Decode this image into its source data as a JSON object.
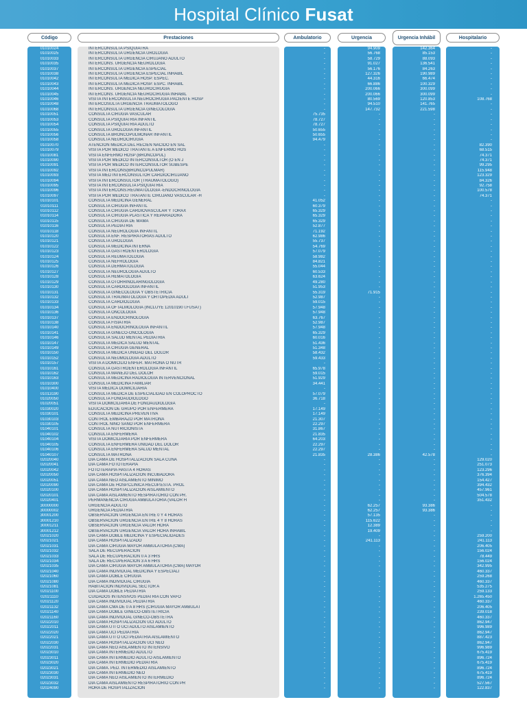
{
  "title": {
    "prefix": "Hospital Clínico",
    "brand": "Fusat"
  },
  "headers": [
    "Código",
    "Prestaciones",
    "Ambulatorio",
    "Urgencia",
    "Urgencia Inhábil",
    "Hospitalario"
  ],
  "rows": [
    [
      "01010024",
      "INTERCONSULTA PSIQUIATRA",
      "-",
      "94.909",
      "142.364",
      "-"
    ],
    [
      "01010025",
      "INTERCONSULTA URGENCIA UROLOGIA",
      "-",
      "56.768",
      "85.153",
      "-"
    ],
    [
      "01010033",
      "INTERCONSULTA URGENCIA CIRUJANO ADULTO",
      "-",
      "58.729",
      "88.093",
      "-"
    ],
    [
      "01010035",
      "INTERCONS. URGENCIA NEUROLOGIA",
      "-",
      "91.027",
      "136.541",
      "-"
    ],
    [
      "01010037",
      "INTERCONSULTA URGENCIA ESPECIAL",
      "-",
      "56.176",
      "84.263",
      "-"
    ],
    [
      "01010038",
      "INTERCONSULTA URGENCIA ESPECIAL INHABIL",
      "-",
      "127.326",
      "190.989",
      "-"
    ],
    [
      "01010042",
      "INTERCONSULTA MEDICA HOSP. ESPEC.",
      "-",
      "44.316",
      "66.474",
      "-"
    ],
    [
      "01010043",
      "INTERCONSULTA MEDICA HOSP. ESPC. INHABIL",
      "-",
      "66.886",
      "100.329",
      "-"
    ],
    [
      "01010044",
      "INTERCONS. URGENCIA NEUROCIRUGIA",
      "-",
      "200.066",
      "300.099",
      "-"
    ],
    [
      "01010045",
      "INTERCONS. URGENCIA NEUROCIRUGIA INHABIL",
      "-",
      "200.066",
      "300.099",
      "-"
    ],
    [
      "01010046",
      "VISITA INTERCONSULTA NEUROCIRUGIA PACIENTE HOSP",
      "-",
      "80.569",
      "120.853",
      "108.768"
    ],
    [
      "01010048",
      "INTERCOSULTA URGENCIA TRAUMATOLOGO",
      "-",
      "94.510",
      "141.765",
      "-"
    ],
    [
      "01010068",
      "INTERCONSULTA URGENCIA GINECOLOGÍA",
      "-",
      "147.732",
      "221.598",
      "-"
    ],
    [
      "01010051",
      "CONSULTA CIRUGIA VASCULAR",
      "75.735",
      "-",
      "-",
      "-"
    ],
    [
      "01010053",
      "CONSULTA PSIQUIATRIA INFANTIL",
      "78.727",
      "-",
      "-",
      "-"
    ],
    [
      "01010054",
      "CONSULTA PSIQUIATRIA ADULTO",
      "78.727",
      "-",
      "-",
      "-"
    ],
    [
      "01010055",
      "CONSULTA UROLOGIA INFANTIL",
      "50.655",
      "-",
      "-",
      "-"
    ],
    [
      "01010056",
      "CONSULTA BRONCOPULMONAR INFANTIL",
      "50.655",
      "-",
      "-",
      "-"
    ],
    [
      "01010058",
      "CONSULTA NEUROCIRUGIA",
      "94.479",
      "-",
      "-",
      "-"
    ],
    [
      "01010070",
      "ATENCION MEDICA DEL RECIEN NACIDO EN SAL",
      "-",
      "-",
      "-",
      "82.390"
    ],
    [
      "01010079",
      "VISITA POR MEDICO TRATANTE A ENFERMO HOS",
      "-",
      "-",
      "-",
      "68.515"
    ],
    [
      "01010081",
      "VISITA ENFERMO HOSP (BRONCOPUL)",
      "-",
      "-",
      "-",
      "74.371"
    ],
    [
      "01010090",
      "VISITA POR MEDICO INTERCONSULTOR (O EN J",
      "-",
      "-",
      "-",
      "74.371"
    ],
    [
      "01010091",
      "VISITA POR MEDICO INTERCONSULTOR SUBESPE",
      "-",
      "-",
      "-",
      "99.295"
    ],
    [
      "01010092",
      "VISITA INTERCONS(BRONCOPULMAR)",
      "-",
      "-",
      "-",
      "115.948"
    ],
    [
      "01010093",
      "VISITA MED INTERCONSULTOR CARDIOCIRUJANO",
      "-",
      "-",
      "-",
      "123.329"
    ],
    [
      "01010094",
      "VISITA INTERCONSULTOR (TRAUMATOLOGO)",
      "-",
      "-",
      "-",
      "84.326"
    ],
    [
      "01010095",
      "VISITA INTERCONSULTA PSIQUIATRIA",
      "-",
      "-",
      "-",
      "92.758"
    ],
    [
      "01010096",
      "VISITA INTERCONS.REUMATOLOGIA -ENDOCRINOLOGIA",
      "-",
      "-",
      "-",
      "100.578"
    ],
    [
      "01010097",
      "VISITA POR MEDICO TRATANTE CIRUJANO VASCULAR -H",
      "-",
      "-",
      "-",
      "74.371"
    ],
    [
      "01010101",
      "CONSULTA MEDICINA GENERAL",
      "41.052",
      "-",
      "-",
      "-"
    ],
    [
      "01010111",
      "CONSULTA CIRUGIA INFANTIL",
      "60.379",
      "-",
      "-",
      "-"
    ],
    [
      "01010112",
      "CONSULTA CIRUGIA CARDIOVASCULAR Y TORAX",
      "65.329",
      "-",
      "-",
      "-"
    ],
    [
      "01010114",
      "CONSULTA CIRUGIA PLASTICA Y REPARADORA",
      "65.329",
      "-",
      "-",
      "-"
    ],
    [
      "01010115",
      "CONSULTA CIRUGIA DE MAMA",
      "65.329",
      "-",
      "-",
      "-"
    ],
    [
      "01010116",
      "CONSULTA PEDIATRIA",
      "52.877",
      "-",
      "-",
      "-"
    ],
    [
      "01010118",
      "CONSULTA NEUROLOGIA INFANTIL",
      "71.192",
      "-",
      "-",
      "-"
    ],
    [
      "01010120",
      "CONSULTA ENF. RESPIRATORIAS ADULTO",
      "62.986",
      "-",
      "-",
      "-"
    ],
    [
      "01010121",
      "CONSULTA UROLOGIA",
      "55.737",
      "-",
      "-",
      "-"
    ],
    [
      "01010122",
      "CONSULTA MEDICINA INTERNA",
      "54.769",
      "-",
      "-",
      "-"
    ],
    [
      "01010123",
      "CONSULTA GASTROENTEROLOGIA",
      "57.079",
      "-",
      "-",
      "-"
    ],
    [
      "01010124",
      "CONSULTA REUMATOLOGIA",
      "58.982",
      "-",
      "-",
      "-"
    ],
    [
      "01010125",
      "CONSULTA NEFROLOGIA",
      "84.821",
      "-",
      "-",
      "-"
    ],
    [
      "01010126",
      "CONSULTA DERMATOLOGIA",
      "55.044",
      "-",
      "-",
      "-"
    ],
    [
      "01010127",
      "CONSULTA NEUROLOGIA ADULTO",
      "60.533",
      "-",
      "-",
      "-"
    ],
    [
      "01010128",
      "CONSULTA HEMATOLOGIA",
      "63.624",
      "-",
      "-",
      "-"
    ],
    [
      "01010129",
      "CONSULTA OTORRINOLARINGOLOGIA",
      "49.280",
      "-",
      "-",
      "-"
    ],
    [
      "01010130",
      "CONSULTA CARDIOLOGIA INFANTIL",
      "51.953",
      "-",
      "-",
      "-"
    ],
    [
      "01010131",
      "CONSULTA GINECOLOGIA Y OBSTETRICIA",
      "55.319",
      "71.915",
      "-",
      "-"
    ],
    [
      "01010132",
      "CONSULTA TRAUMATOLOGIA Y ORTOPEDIA ADULT",
      "52.987",
      "-",
      "-",
      "-"
    ],
    [
      "01010133",
      "CONSULTA CARDIOLOGIA",
      "59.015",
      "-",
      "-",
      "-"
    ],
    [
      "01010134",
      "CONSULTA OFTALMOLOGIA (INCLUYE 12010190 I.FUSAT)",
      "57.948",
      "-",
      "-",
      "-"
    ],
    [
      "01010136",
      "CONSULTA ONCOLOGIA",
      "57.948",
      "-",
      "-",
      "-"
    ],
    [
      "01010137",
      "CONSULTA ENDOCRINOLOGIA",
      "63.767",
      "-",
      "-",
      "-"
    ],
    [
      "01010138",
      "CONSULTA FISIATRIA",
      "52.987",
      "-",
      "-",
      "-"
    ],
    [
      "01010140",
      "CONSULTA ENDOCRINOLOGIA INFANTIL",
      "57.948",
      "-",
      "-",
      "-"
    ],
    [
      "01010141",
      "CONSULTA GINECO-ONCOLOGIA",
      "65.329",
      "-",
      "-",
      "-"
    ],
    [
      "01010146",
      "CONSULTA SALUD MENTAL PEDIATRIA",
      "60.016",
      "-",
      "-",
      "-"
    ],
    [
      "01010147",
      "CONSULTA MEDICA SALUD MENTAL",
      "51.436",
      "-",
      "-",
      "-"
    ],
    [
      "01010149",
      "CONSULTA CIRUGIA GENERAL",
      "51.348",
      "-",
      "-",
      "-"
    ],
    [
      "01010150",
      "CONSULTA MEDICA UNIDAD DEL DOLOR",
      "58.432",
      "-",
      "-",
      "-"
    ],
    [
      "01010152",
      "CONSULTA NEUMOLOGIA ADULTO",
      "59.433",
      "-",
      "-",
      "-"
    ],
    [
      "01010157",
      "VISITA A DOMICILIO ENFER. MATRONA O NUTR",
      "-",
      "-",
      "-",
      "-"
    ],
    [
      "01010161",
      "CONSULTA GASTROENTEROLOGIA INFANTIL",
      "65.978",
      "-",
      "-",
      "-"
    ],
    [
      "01010162",
      "CONSULTA MANEJO DEL DOLOR",
      "59.015",
      "-",
      "-",
      "-"
    ],
    [
      "01010163",
      "CONSULTA MEDICINA RADIOLOGIA INTERVENCIONAL",
      "51.929",
      "-",
      "-",
      "-"
    ],
    [
      "01010300",
      "CONSULTA MEDICINA FAMILIAR",
      "34.441",
      "-",
      "-",
      "-"
    ],
    [
      "01010400",
      "VISITA MEDICA DOMICILIARIA",
      "-",
      "-",
      "-",
      "-"
    ],
    [
      "01013190",
      "CONSULTA MEDICA DE ESPECIALIDAD EN COLOPROCTO",
      "57.079",
      "-",
      "-",
      "-"
    ],
    [
      "01020050",
      "CONSULTA FONOAUDIOLOGO",
      "36.718",
      "-",
      "-",
      "-"
    ],
    [
      "01020051",
      "VISITA DOMICILIARIA DE FONOAUDIOLOGIA",
      "-",
      "-",
      "-",
      "-"
    ],
    [
      "01030020",
      "EDUCACION DE GRUPO POR ENFERMERA",
      "17.149",
      "-",
      "-",
      "-"
    ],
    [
      "01030101",
      "CONSULTA MEDICINA PREVENTIVA",
      "17.149",
      "-",
      "-",
      "-"
    ],
    [
      "01030103",
      "CONTROL EMBARAZO POR MATRONA",
      "21.307",
      "-",
      "-",
      "-"
    ],
    [
      "01030105",
      "CONTROL NIÑO SANO POR ENFERMERA",
      "22.297",
      "-",
      "-",
      "-"
    ],
    [
      "01040101",
      "CONSULTA NUTRICIONISTA",
      "31.867",
      "-",
      "-",
      "-"
    ],
    [
      "01040102",
      "CONSULTA ENFERMERA",
      "21.835",
      "-",
      "-",
      "-"
    ],
    [
      "01040104",
      "VISITA DOMICILIARIA POR ENFERMERA",
      "64.203",
      "-",
      "-",
      "-"
    ],
    [
      "01040105",
      "CONSULTA ENFERMERA UNIDAD DEL DOLOR",
      "22.297",
      "-",
      "-",
      "-"
    ],
    [
      "01040106",
      "CONSULTA ENFERMERA SALUD MENTAL",
      "22.297",
      "-",
      "-",
      "-"
    ],
    [
      "01040107",
      "CONSULTA MATRONA",
      "21.835",
      "28.386",
      "42.578",
      "-"
    ],
    [
      "02020040",
      "DIA CAMA DE HOSPITALIZACION SALA CUNA",
      "-",
      "-",
      "-",
      "129.020"
    ],
    [
      "02020041",
      "DIA CAMA FOTOTERAPIA",
      "-",
      "-",
      "-",
      "251.073"
    ],
    [
      "02020042",
      "FOTOTERAPIA HASTA 4 HORAS",
      "-",
      "-",
      "-",
      "123.296"
    ],
    [
      "02020050",
      "DIA CAMA HOSPITALIZACION INCUBADORA",
      "-",
      "-",
      "-",
      "376.394"
    ],
    [
      "02020051",
      "DIA CAMA NEO AISLAMIENTO MINIMO",
      "-",
      "-",
      "-",
      "154.427"
    ],
    [
      "02020090",
      "DIA CAMA DE HOSP.CLINICA RECUP.ESTA. PROL",
      "-",
      "-",
      "-",
      "394.432"
    ],
    [
      "02020100",
      "DIA CAMA HOSPITALIZACION AISLAMIENTO",
      "-",
      "-",
      "-",
      "457.961"
    ],
    [
      "02020101",
      "DIA CAMA AISLAMIENTO RESPIRATORIO CON PR.",
      "-",
      "-",
      "-",
      "504.578"
    ],
    [
      "02020401",
      "PERMANENCIA CIRUGIA AMBULATORIA (VALOR H",
      "-",
      "-",
      "-",
      "351.432"
    ],
    [
      "30000000",
      "URGENCIA ADULTO",
      "-",
      "62.257",
      "93.386",
      "-"
    ],
    [
      "30000002",
      "URGENCIA PEDIATRIA",
      "-",
      "62.257",
      "93.386",
      "-"
    ],
    [
      "30001200",
      "OBSERVACION URGENCIA ENTRE 0 Y 4 HORAS",
      "-",
      "57.135",
      "-",
      "-"
    ],
    [
      "30001210",
      "OBSERVACION URGENCIA ENTRE 4 Y 8 HORAS",
      "-",
      "115.622",
      "-",
      "-"
    ],
    [
      "30001211",
      "OBSERVACION URGENCIA VALOR HORA",
      "-",
      "12.389",
      "-",
      "-"
    ],
    [
      "30001212",
      "OBSERVACION URGENCIA VALOR HORA INHABIL",
      "-",
      "19.409",
      "-",
      "-"
    ],
    [
      "02021020",
      "DIA CAMA DOBLE MEDICINA Y ESPECIALIDADES",
      "-",
      "-",
      "-",
      "259.200"
    ],
    [
      "02021021",
      "DIA CAMA HOSPITALIZADO",
      "-",
      "241.113",
      "-",
      "241.113"
    ],
    [
      "02021031",
      "DIA CAMA CIRUGIA MAYOR AMBULATORIA (CMA)",
      "-",
      "-",
      "-",
      "206.405"
    ],
    [
      "02021032",
      "SALA DE RECUPERACION",
      "-",
      "-",
      "-",
      "156.024"
    ],
    [
      "02021033",
      "SALA DE RECUPERACIÓN 0 A 3 HRS",
      "-",
      "-",
      "-",
      "78.449"
    ],
    [
      "02021034",
      "SALA DE RECUPERACIÓN 3 A 6 HRS",
      "-",
      "-",
      "-",
      "156.024"
    ],
    [
      "02021035",
      "DIA CAMA CIRUGIA MAYOR AMBULATORIA (CMA) MAYOR",
      "-",
      "-",
      "-",
      "342.995"
    ],
    [
      "02021040",
      "DIA CAMA INDIVIDUAL MEDICINA Y ESPECIALI",
      "-",
      "-",
      "-",
      "460.337"
    ],
    [
      "02021060",
      "DIA CAMA DOBLE CIRUGIA",
      "-",
      "-",
      "-",
      "259.268"
    ],
    [
      "02021080",
      "DIA CAMA INDIVIDUAL CIRUGIA",
      "-",
      "-",
      "-",
      "460.337"
    ],
    [
      "02021081",
      "HABITACION INDIVIDUAL SECTOR A",
      "-",
      "-",
      "-",
      "535.275"
    ],
    [
      "02021100",
      "DIA CAMA DOBLE PEDIATRIA",
      "-",
      "-",
      "-",
      "259.133"
    ],
    [
      "02021110",
      "CUIDADOS INTENSIVOS PEDIATRIA CON VAFO",
      "-",
      "-",
      "-",
      "1.265.450"
    ],
    [
      "02021120",
      "DIA CAMA INDIVIDUAL PEDIATRIA",
      "-",
      "-",
      "-",
      "460.337"
    ],
    [
      "02021132",
      "DÍA CAMA CMA DE 0 A 8 HRS (CIRUGÍA MAYOR AMBULAT",
      "-",
      "-",
      "-",
      "206.405"
    ],
    [
      "02021140",
      "DIA CAMA DOBLE GINECO-OBSTETRICIA",
      "-",
      "-",
      "-",
      "239.018"
    ],
    [
      "02021160",
      "DIA CAMA INDIVIDUAL GINECO-OBSTETRA",
      "-",
      "-",
      "-",
      "460.337"
    ],
    [
      "02022010",
      "DIA CAMA HOSPITALIZACION UCI ADULTO",
      "-",
      "-",
      "-",
      "862.947"
    ],
    [
      "02022011",
      "DIA CAMA UTI O UCI ADULTO AISLAMIENTO",
      "-",
      "-",
      "-",
      "996.989"
    ],
    [
      "02022020",
      "DIA CAMA UCI PEDIATRIA",
      "-",
      "-",
      "-",
      "862.947"
    ],
    [
      "02022021",
      "DIA CAMA UTI O UCI PEDIATRIA AISLAMIENTO",
      "-",
      "-",
      "-",
      "887.423"
    ],
    [
      "02022030",
      "DIA CAMA HOSPITALIZACION UCI NEO",
      "-",
      "-",
      "-",
      "862.947"
    ],
    [
      "02022031",
      "DIA CAMA NEO AISLAMIENTO INTENSIVO",
      "-",
      "-",
      "-",
      "996.989"
    ],
    [
      "02023010",
      "DIA CAMA INTERMEDIO ADULTO",
      "-",
      "-",
      "-",
      "675.419"
    ],
    [
      "02023011",
      "DIA CAMA INTERMEDIO ADULTO AISLAMIENTO",
      "-",
      "-",
      "-",
      "896.724"
    ],
    [
      "02023020",
      "DIA CAMA INTERMEDIO PEDIATRIA",
      "-",
      "-",
      "-",
      "675.419"
    ],
    [
      "02023021",
      "DIA CAMA. PED. INTERMEDIO AISLAMIENTO",
      "-",
      "-",
      "-",
      "896.724"
    ],
    [
      "02023030",
      "DIA CAMA INTERMEDIO NEO",
      "-",
      "-",
      "-",
      "675.419"
    ],
    [
      "02023031",
      "DIA CAMA NEO AISLAMIENTO INTERMEDIO",
      "-",
      "-",
      "-",
      "896.724"
    ],
    [
      "02023032",
      "DIA CAMA AISLAMIENTO RESPIRATORIO CON PR",
      "-",
      "-",
      "-",
      "527.567"
    ],
    [
      "02024090",
      "HORA DE HOSPITALIZACION",
      "-",
      "-",
      "-",
      "122.837"
    ]
  ]
}
